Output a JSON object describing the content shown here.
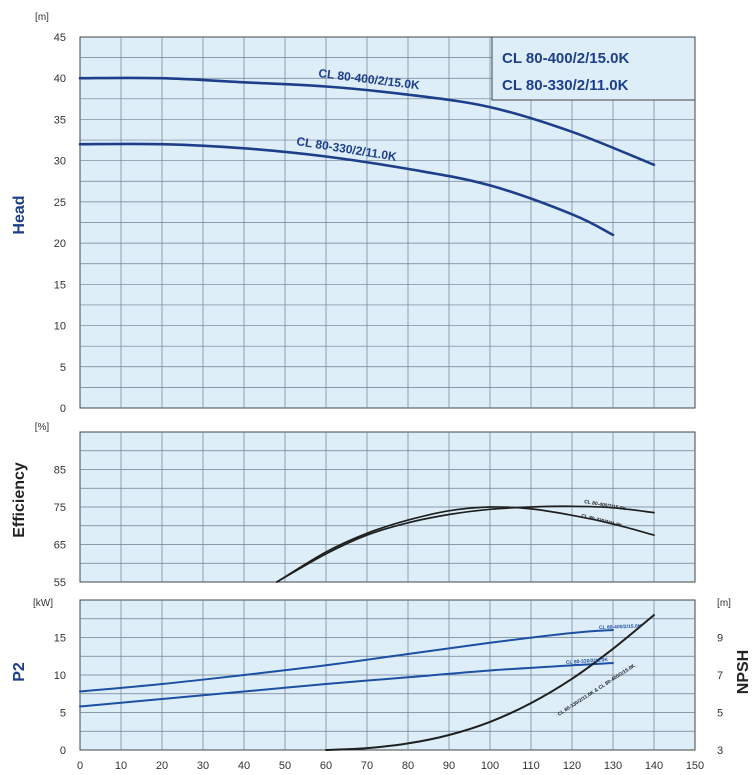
{
  "chart_data": [
    {
      "panel": "head",
      "type": "line",
      "ylabel": "Head",
      "yunit": "[m]",
      "ylim": [
        0,
        45
      ],
      "yticks": [
        0,
        5,
        10,
        15,
        20,
        25,
        30,
        35,
        40,
        45
      ],
      "xlim": [
        0,
        150
      ],
      "grid": true,
      "legend": {
        "position": "top-right",
        "entries": [
          "CL 80-400/2/15.0K",
          "CL 80-330/2/11.0K"
        ]
      },
      "series": [
        {
          "name": "CL 80-400/2/15.0K",
          "color": "#1d3f8a",
          "x": [
            0,
            20,
            40,
            60,
            80,
            100,
            120,
            140
          ],
          "y": [
            40,
            40,
            39.5,
            39,
            38,
            36.5,
            33.5,
            29.5
          ]
        },
        {
          "name": "CL 80-330/2/11.0K",
          "color": "#1d3f8a",
          "x": [
            0,
            20,
            40,
            60,
            80,
            100,
            120,
            130
          ],
          "y": [
            32,
            32,
            31.5,
            30.5,
            29,
            27,
            23.5,
            21
          ]
        }
      ]
    },
    {
      "panel": "efficiency",
      "type": "line",
      "ylabel": "Efficiency",
      "yunit": "[%]",
      "ylim": [
        55,
        95
      ],
      "yticks": [
        55,
        65,
        75,
        85
      ],
      "xlim": [
        0,
        150
      ],
      "grid": true,
      "series": [
        {
          "name": "CL 80-400/2/15.0K",
          "color": "#1f1f1f",
          "x": [
            48,
            60,
            70,
            80,
            90,
            100,
            110,
            120,
            130,
            140
          ],
          "y": [
            55,
            62.5,
            67.5,
            70.8,
            73,
            74.4,
            75,
            75.2,
            74.8,
            73.5
          ]
        },
        {
          "name": "CL 80-330/2/11.0K",
          "color": "#1f1f1f",
          "x": [
            48,
            60,
            70,
            80,
            90,
            100,
            110,
            120,
            130,
            140
          ],
          "y": [
            55,
            63,
            68,
            71.5,
            74,
            75,
            74.5,
            72.8,
            70.5,
            67.5
          ]
        }
      ]
    },
    {
      "panel": "p2-npsh",
      "type": "line",
      "ylabel": "P2",
      "yunit": "[kW]",
      "ylim": [
        0,
        20
      ],
      "yticks": [
        0,
        5,
        10,
        15
      ],
      "y2label": "NPSH",
      "y2unit": "[m]",
      "y2lim": [
        3,
        11
      ],
      "y2ticks": [
        3,
        5,
        7,
        9
      ],
      "xlim": [
        0,
        150
      ],
      "xticks": [
        0,
        10,
        20,
        30,
        40,
        50,
        60,
        70,
        80,
        90,
        100,
        110,
        120,
        130,
        140,
        150
      ],
      "grid": true,
      "series": [
        {
          "name": "CL 80-400/2/15.0K",
          "axis": "P2",
          "color": "#1d4fa3",
          "x": [
            0,
            20,
            40,
            60,
            80,
            100,
            120,
            130
          ],
          "y": [
            7.8,
            8.8,
            10.0,
            11.3,
            12.8,
            14.3,
            15.6,
            16.0
          ]
        },
        {
          "name": "CL 80-330/2/11.0K",
          "axis": "P2",
          "color": "#1d4fa3",
          "x": [
            0,
            20,
            40,
            60,
            80,
            100,
            120,
            130
          ],
          "y": [
            5.8,
            6.8,
            7.8,
            8.8,
            9.7,
            10.6,
            11.3,
            11.6
          ]
        },
        {
          "name": "CL 80-330/2/11.0K & CL 80-400/2/15.0K",
          "axis": "NPSH",
          "color": "#1f1f1f",
          "x": [
            60,
            70,
            80,
            90,
            100,
            110,
            120,
            130,
            140
          ],
          "y": [
            3.0,
            3.1,
            3.35,
            3.8,
            4.5,
            5.5,
            6.8,
            8.4,
            10.2
          ]
        }
      ]
    }
  ]
}
